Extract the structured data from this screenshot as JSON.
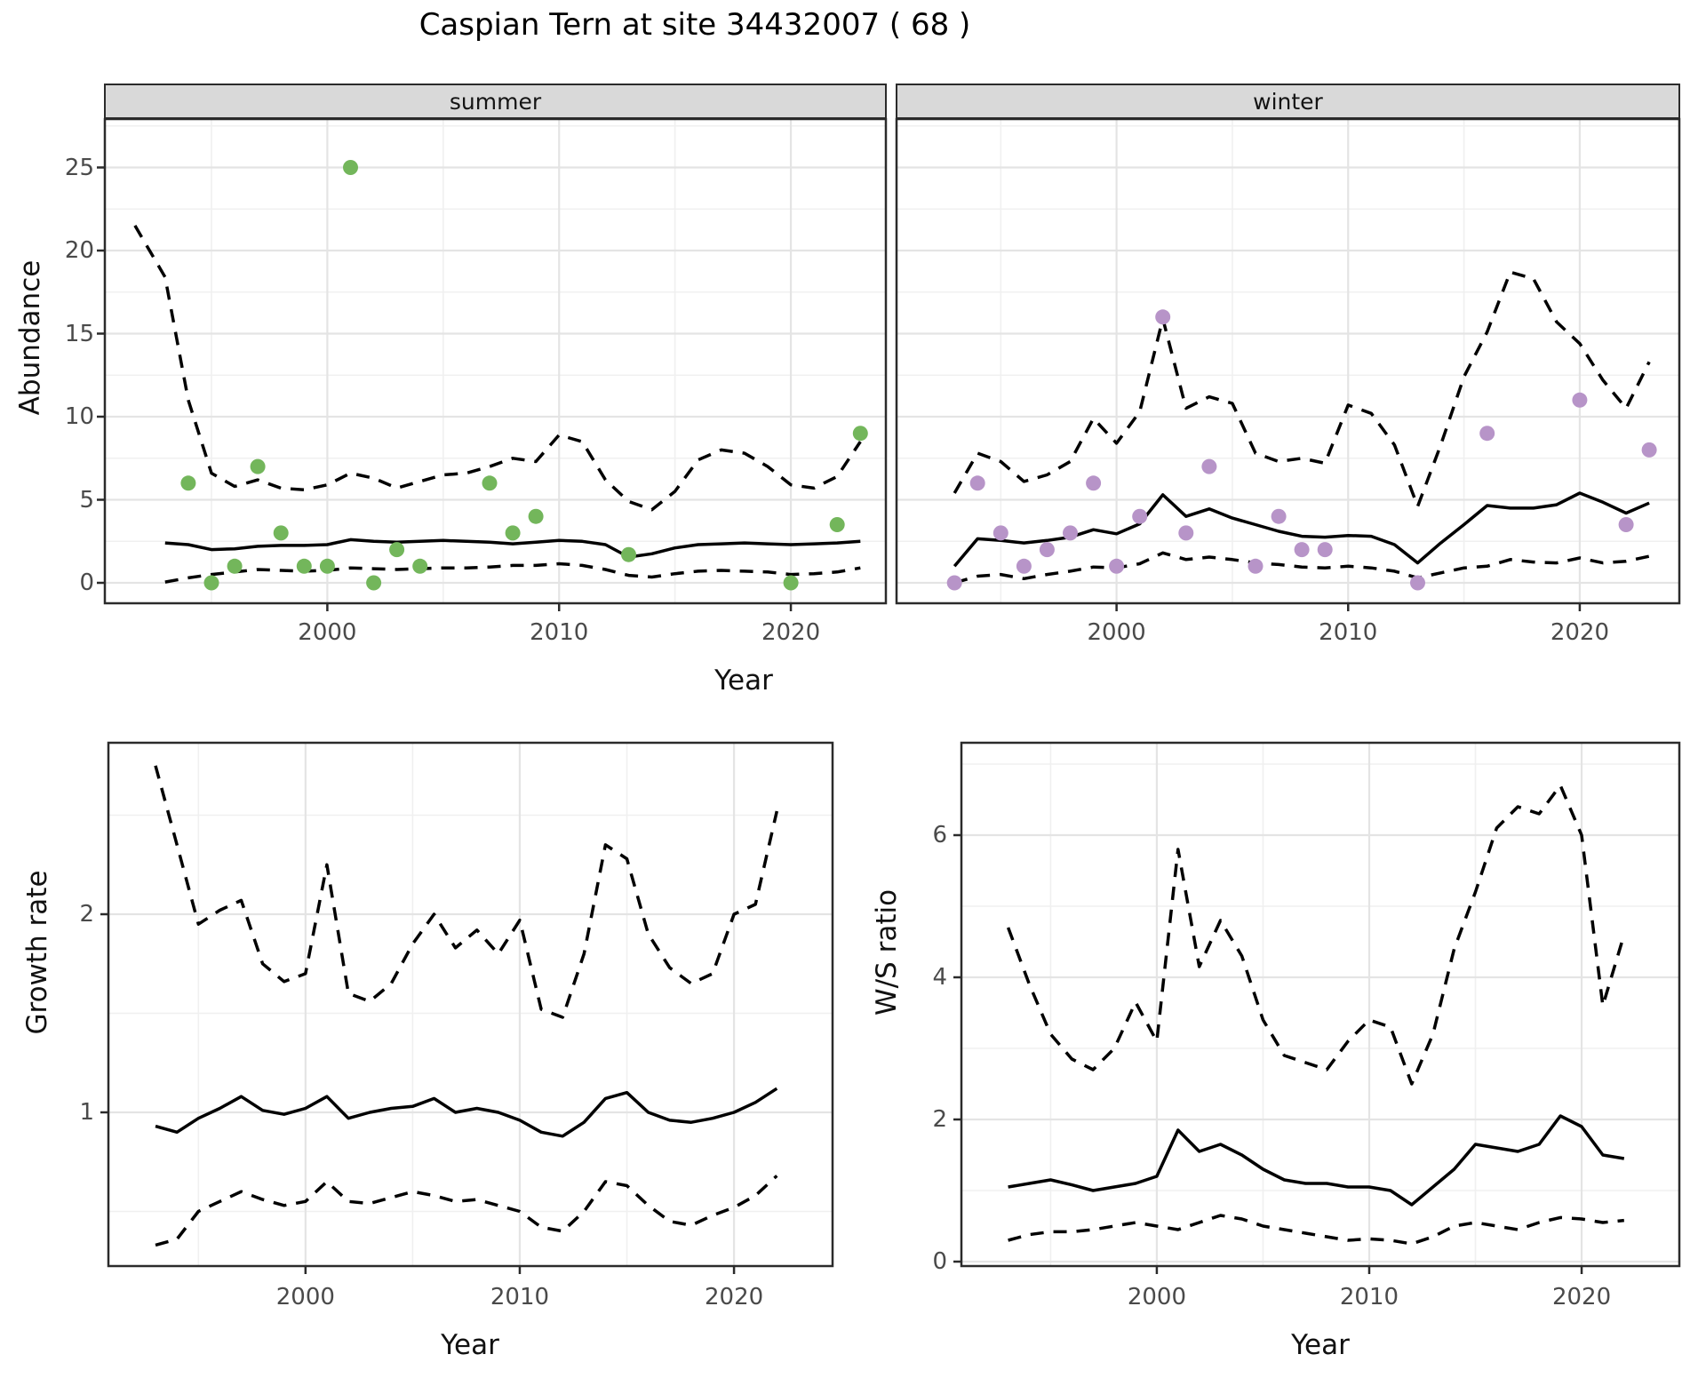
{
  "title": "Caspian Tern at site 34432007 ( 68 )",
  "colors": {
    "summer_points": "#73b65b",
    "winter_points": "#b794c8",
    "fit_line": "#000000",
    "ci_line": "#000000",
    "strip_bg": "#d9d9d9",
    "panel_border": "#2b2b2b",
    "grid_major": "#e4e4e4",
    "grid_minor": "#f0f0f0"
  },
  "chart_data": [
    {
      "id": "abundance_summer",
      "type": "line+scatter",
      "facet_label": "summer",
      "ylabel": "Abundance",
      "xlabel": "Year",
      "xticks": [
        2000,
        2010,
        2020
      ],
      "yticks": [
        0,
        5,
        10,
        15,
        20,
        25
      ],
      "xlim": [
        1990.4,
        2024.1
      ],
      "ylim": [
        -1.2,
        27.9
      ],
      "point_color": "#73b65b",
      "years": [
        1993,
        1994,
        1995,
        1996,
        1997,
        1998,
        1999,
        2000,
        2001,
        2002,
        2003,
        2004,
        2005,
        2006,
        2007,
        2008,
        2009,
        2010,
        2011,
        2012,
        2013,
        2014,
        2015,
        2016,
        2017,
        2018,
        2019,
        2020,
        2021,
        2022,
        2023
      ],
      "fit": [
        2.4,
        2.3,
        2.0,
        2.05,
        2.2,
        2.25,
        2.25,
        2.3,
        2.6,
        2.5,
        2.45,
        2.5,
        2.55,
        2.5,
        2.45,
        2.35,
        2.45,
        2.55,
        2.5,
        2.3,
        1.55,
        1.75,
        2.1,
        2.3,
        2.35,
        2.4,
        2.35,
        2.3,
        2.35,
        2.4,
        2.5
      ],
      "ci_upper_years": [
        1991.7,
        1993,
        1994,
        1995,
        1996,
        1997,
        1998,
        1999,
        2000,
        2001,
        2002,
        2003,
        2004,
        2005,
        2006,
        2007,
        2008,
        2009,
        2010,
        2011,
        2012,
        2013,
        2014,
        2015,
        2016,
        2017,
        2018,
        2019,
        2020,
        2021,
        2022,
        2023
      ],
      "ci_upper": [
        21.5,
        18.4,
        11.0,
        6.6,
        5.8,
        6.2,
        5.7,
        5.6,
        5.9,
        6.6,
        6.3,
        5.7,
        6.1,
        6.5,
        6.6,
        7.0,
        7.5,
        7.3,
        8.9,
        8.5,
        6.2,
        4.9,
        4.4,
        5.5,
        7.4,
        8.0,
        7.8,
        7.0,
        5.9,
        5.7,
        6.4,
        8.5
      ],
      "ci_lower": [
        0.05,
        0.3,
        0.5,
        0.65,
        0.8,
        0.75,
        0.7,
        0.75,
        0.9,
        0.85,
        0.8,
        0.85,
        0.9,
        0.9,
        0.95,
        1.05,
        1.05,
        1.15,
        1.05,
        0.8,
        0.45,
        0.35,
        0.55,
        0.7,
        0.75,
        0.7,
        0.65,
        0.5,
        0.55,
        0.65,
        0.9
      ],
      "points": {
        "years": [
          1994,
          1995,
          1996,
          1997,
          1998,
          1999,
          2000,
          2001,
          2002,
          2003,
          2004,
          2007,
          2008,
          2009,
          2013,
          2020,
          2022,
          2023
        ],
        "values": [
          6,
          0,
          1,
          7,
          3,
          1,
          1,
          25,
          0,
          2,
          1,
          6,
          3,
          4,
          1.7,
          0,
          3.5,
          9
        ]
      }
    },
    {
      "id": "abundance_winter",
      "type": "line+scatter",
      "facet_label": "winter",
      "ylabel": "Abundance",
      "xlabel": "Year",
      "xticks": [
        2000,
        2010,
        2020
      ],
      "yticks": [
        0,
        5,
        10,
        15,
        20,
        25
      ],
      "xlim": [
        1990.5,
        2024.3
      ],
      "ylim": [
        -1.2,
        27.9
      ],
      "point_color": "#b794c8",
      "years": [
        1993,
        1994,
        1995,
        1996,
        1997,
        1998,
        1999,
        2000,
        2001,
        2002,
        2003,
        2004,
        2005,
        2006,
        2007,
        2008,
        2009,
        2010,
        2011,
        2012,
        2013,
        2014,
        2015,
        2016,
        2017,
        2018,
        2019,
        2020,
        2021,
        2022,
        2023
      ],
      "fit": [
        1.0,
        2.65,
        2.55,
        2.4,
        2.55,
        2.75,
        3.2,
        2.95,
        3.55,
        5.3,
        4.0,
        4.45,
        3.9,
        3.5,
        3.1,
        2.8,
        2.75,
        2.85,
        2.8,
        2.3,
        1.2,
        2.4,
        3.5,
        4.65,
        4.5,
        4.5,
        4.7,
        5.4,
        4.85,
        4.2,
        4.8
      ],
      "ci_upper": [
        5.4,
        7.8,
        7.3,
        6.1,
        6.5,
        7.3,
        9.9,
        8.4,
        10.3,
        15.9,
        10.5,
        11.2,
        10.8,
        7.8,
        7.3,
        7.5,
        7.2,
        10.7,
        10.2,
        8.3,
        4.6,
        8.3,
        12.4,
        15.1,
        18.7,
        18.3,
        15.7,
        14.4,
        12.2,
        10.5,
        13.3
      ],
      "ci_lower": [
        0.0,
        0.4,
        0.5,
        0.25,
        0.5,
        0.7,
        0.95,
        0.9,
        1.15,
        1.8,
        1.4,
        1.55,
        1.4,
        1.2,
        1.1,
        0.95,
        0.9,
        1.0,
        0.9,
        0.7,
        0.3,
        0.6,
        0.9,
        1.0,
        1.4,
        1.25,
        1.2,
        1.5,
        1.2,
        1.3,
        1.6
      ],
      "points": {
        "years": [
          1993,
          1994,
          1995,
          1996,
          1997,
          1998,
          1999,
          2000,
          2001,
          2002,
          2003,
          2004,
          2006,
          2007,
          2008,
          2009,
          2013,
          2016,
          2020,
          2022,
          2023
        ],
        "values": [
          0,
          6,
          3,
          1,
          2,
          3,
          6,
          1,
          4,
          16,
          3,
          7,
          1,
          4,
          2,
          2,
          0,
          9,
          11,
          3.5,
          8
        ]
      }
    },
    {
      "id": "growth_rate",
      "type": "line",
      "facet_label": "",
      "ylabel": "Growth rate",
      "xlabel": "Year",
      "xticks": [
        2000,
        2010,
        2020
      ],
      "yticks": [
        1,
        2
      ],
      "xlim": [
        1990.8,
        2024.6
      ],
      "ylim": [
        0.22,
        2.87
      ],
      "years": [
        1993,
        1994,
        1995,
        1996,
        1997,
        1998,
        1999,
        2000,
        2001,
        2002,
        2003,
        2004,
        2005,
        2006,
        2007,
        2008,
        2009,
        2010,
        2011,
        2012,
        2013,
        2014,
        2015,
        2016,
        2017,
        2018,
        2019,
        2020,
        2021,
        2022
      ],
      "fit": [
        0.93,
        0.9,
        0.97,
        1.02,
        1.08,
        1.01,
        0.99,
        1.02,
        1.08,
        0.97,
        1.0,
        1.02,
        1.03,
        1.07,
        1.0,
        1.02,
        1.0,
        0.96,
        0.9,
        0.88,
        0.95,
        1.07,
        1.1,
        1.0,
        0.96,
        0.95,
        0.97,
        1.0,
        1.05,
        1.12
      ],
      "ci_upper": [
        2.75,
        2.35,
        1.95,
        2.02,
        2.07,
        1.75,
        1.66,
        1.7,
        2.25,
        1.6,
        1.56,
        1.65,
        1.85,
        2.0,
        1.83,
        1.92,
        1.8,
        1.97,
        1.52,
        1.48,
        1.8,
        2.35,
        2.28,
        1.9,
        1.73,
        1.65,
        1.7,
        2.0,
        2.05,
        2.52
      ],
      "ci_lower": [
        0.33,
        0.36,
        0.5,
        0.55,
        0.6,
        0.56,
        0.53,
        0.55,
        0.65,
        0.55,
        0.54,
        0.57,
        0.6,
        0.58,
        0.55,
        0.56,
        0.53,
        0.5,
        0.42,
        0.4,
        0.5,
        0.65,
        0.63,
        0.53,
        0.45,
        0.43,
        0.48,
        0.52,
        0.58,
        0.68
      ]
    },
    {
      "id": "ws_ratio",
      "type": "line",
      "facet_label": "",
      "ylabel": "W/S ratio",
      "xlabel": "Year",
      "xticks": [
        2000,
        2010,
        2020
      ],
      "yticks": [
        0,
        2,
        4,
        6
      ],
      "xlim": [
        1990.8,
        2024.6
      ],
      "ylim": [
        -0.06,
        7.3
      ],
      "years": [
        1993,
        1994,
        1995,
        1996,
        1997,
        1998,
        1999,
        2000,
        2001,
        2002,
        2003,
        2004,
        2005,
        2006,
        2007,
        2008,
        2009,
        2010,
        2011,
        2012,
        2013,
        2014,
        2015,
        2016,
        2017,
        2018,
        2019,
        2020,
        2021,
        2022
      ],
      "fit": [
        1.05,
        1.1,
        1.15,
        1.08,
        1.0,
        1.05,
        1.1,
        1.2,
        1.85,
        1.55,
        1.65,
        1.5,
        1.3,
        1.15,
        1.1,
        1.1,
        1.05,
        1.05,
        1.0,
        0.8,
        1.05,
        1.3,
        1.65,
        1.6,
        1.55,
        1.65,
        2.05,
        1.9,
        1.5,
        1.45
      ],
      "ci_upper": [
        4.7,
        3.9,
        3.2,
        2.85,
        2.7,
        3.0,
        3.65,
        3.1,
        5.8,
        4.15,
        4.8,
        4.3,
        3.4,
        2.9,
        2.8,
        2.7,
        3.1,
        3.4,
        3.3,
        2.5,
        3.2,
        4.4,
        5.2,
        6.1,
        6.4,
        6.3,
        6.7,
        6.0,
        3.6,
        4.6
      ],
      "ci_lower": [
        0.3,
        0.38,
        0.42,
        0.42,
        0.45,
        0.5,
        0.55,
        0.5,
        0.45,
        0.55,
        0.65,
        0.6,
        0.5,
        0.45,
        0.4,
        0.35,
        0.3,
        0.32,
        0.3,
        0.25,
        0.35,
        0.5,
        0.55,
        0.5,
        0.45,
        0.55,
        0.62,
        0.6,
        0.55,
        0.58
      ]
    }
  ]
}
